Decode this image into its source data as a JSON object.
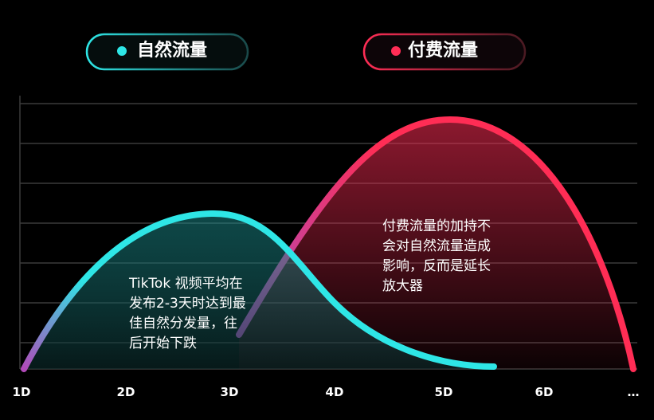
{
  "legend": {
    "items": [
      {
        "label": "自然流量"
      },
      {
        "label": "付费流量"
      }
    ]
  },
  "x_axis": {
    "labels": [
      "1D",
      "2D",
      "3D",
      "4D",
      "5D",
      "6D",
      "…"
    ]
  },
  "annotations": [
    {
      "lines": [
        "TikTok 视频平均在",
        "发布2-3天时达到最",
        "佳自然分发量，往",
        "后开始下跌"
      ]
    },
    {
      "lines": [
        "付费流量的加持不",
        "会对自然流量造成",
        "影响，反而是延长",
        "放大器"
      ]
    }
  ]
}
